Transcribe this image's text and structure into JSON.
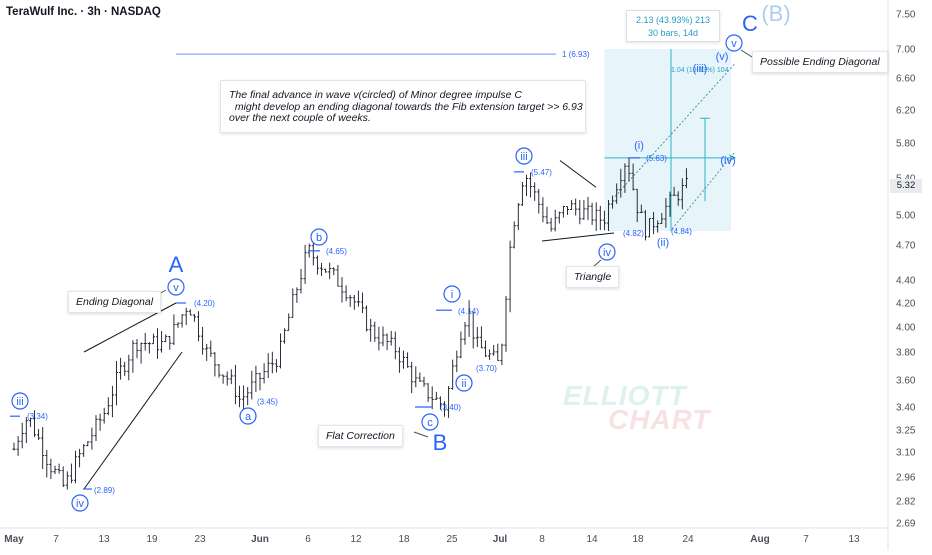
{
  "header": {
    "title": "TeraWulf Inc. · 3h · NASDAQ"
  },
  "chart_data": {
    "type": "candlestick",
    "ticker": "TeraWulf Inc.",
    "interval": "3h",
    "exchange": "NASDAQ",
    "last_price": "5.32",
    "y_ticks": [
      "7.50",
      "7.00",
      "6.60",
      "6.20",
      "5.80",
      "5.40",
      "5.00",
      "4.70",
      "4.40",
      "4.20",
      "4.00",
      "3.80",
      "3.60",
      "3.40",
      "3.25",
      "3.10",
      "2.96",
      "2.82",
      "2.69"
    ],
    "x_ticks": [
      "May",
      "7",
      "13",
      "19",
      "23",
      "Jun",
      "6",
      "12",
      "18",
      "25",
      "Jul",
      "8",
      "14",
      "18",
      "24",
      "Aug",
      "7",
      "13"
    ],
    "ohlc_path": [
      [
        "May 1",
        3.12
      ],
      [
        "May 2",
        3.26
      ],
      [
        "May 3",
        3.34
      ],
      [
        "May 6",
        3.04
      ],
      [
        "May 8",
        2.9
      ],
      [
        "May 13",
        3.36
      ],
      [
        "May 15",
        3.66
      ],
      [
        "May 17",
        3.88
      ],
      [
        "May 20",
        3.86
      ],
      [
        "May 21",
        4.0
      ],
      [
        "May 22",
        4.2
      ],
      [
        "May 23",
        3.95
      ],
      [
        "May 24",
        3.8
      ],
      [
        "May 28",
        3.56
      ],
      [
        "May 29",
        3.45
      ],
      [
        "Jun 3",
        3.78
      ],
      [
        "Jun 5",
        4.38
      ],
      [
        "Jun 6",
        4.65
      ],
      [
        "Jun 11",
        4.3
      ],
      [
        "Jun 14",
        3.96
      ],
      [
        "Jun 17",
        3.82
      ],
      [
        "Jun 20",
        3.56
      ],
      [
        "Jun 24",
        3.4
      ],
      [
        "Jun 26",
        3.95
      ],
      [
        "Jun 27",
        4.14
      ],
      [
        "Jun 28",
        3.86
      ],
      [
        "Jul 1",
        3.7
      ],
      [
        "Jul 2",
        4.3
      ],
      [
        "Jul 3",
        4.85
      ],
      [
        "Jul 5",
        5.47
      ],
      [
        "Jul 9",
        4.85
      ],
      [
        "Jul 11",
        5.1
      ],
      [
        "Jul 15",
        4.95
      ],
      [
        "Jul 16",
        5.3
      ],
      [
        "Jul 17",
        5.63
      ],
      [
        "Jul 18",
        5.05
      ],
      [
        "Jul 19",
        4.84
      ],
      [
        "Jul 22",
        5.15
      ],
      [
        "Jul 23",
        5.25
      ],
      [
        "Jul 24",
        5.32
      ]
    ],
    "levels": [
      {
        "value": 6.93,
        "label": "1 (6.93)"
      },
      {
        "value": 4.2,
        "label": "(4.20)"
      },
      {
        "value": 4.65,
        "label": "(4.65)"
      },
      {
        "value": 3.45,
        "label": "(3.45)"
      },
      {
        "value": 3.4,
        "label": "(3.40)"
      },
      {
        "value": 4.14,
        "label": "(4.14)"
      },
      {
        "value": 3.7,
        "label": "(3.70)"
      },
      {
        "value": 5.47,
        "label": "(5.47)"
      },
      {
        "value": 4.82,
        "label": "(4.82)"
      },
      {
        "value": 5.63,
        "label": "(5.63)"
      },
      {
        "value": 4.84,
        "label": "(4.84)"
      },
      {
        "value": 3.34,
        "label": "(3.34)"
      },
      {
        "value": 2.89,
        "label": "(2.89)"
      }
    ],
    "wave_labels": {
      "A": "A",
      "B": "B",
      "C": "C",
      "B_prime": "(B)",
      "v": "v",
      "iii": "iii",
      "iv": "iv",
      "a": "a",
      "b": "b",
      "c": "c",
      "i": "i",
      "ii": "ii",
      "iv2": "iv",
      "v2": "v",
      "i_paren": "(i)",
      "ii_paren": "(ii)",
      "iii_paren": "(iii)",
      "iv_paren": "(iv)",
      "v_paren": "(v)"
    },
    "measure_box": {
      "line1": "2.13 (43.93%) 213",
      "line2": "30 bars, 14d"
    },
    "projection_label": "1.04 (19.53%) 104"
  },
  "annotations": {
    "note_lines": [
      "The final advance in wave v(circled) of Minor degree impulse C",
      "  might develop an ending diagonal towards the Fib extension target >> 6.93",
      "over the next couple of weeks."
    ],
    "ending_diagonal": "Ending Diagonal",
    "flat_correction": "Flat Correction",
    "triangle": "Triangle",
    "possible_ending_diagonal": "Possible Ending Diagonal"
  },
  "watermark": {
    "line1": "ELLIOTT",
    "line2": "CHART"
  },
  "colors": {
    "wave": "#2962ff",
    "measure": "#2b9dc4",
    "bar": "#131722",
    "level": "#2962ff"
  }
}
